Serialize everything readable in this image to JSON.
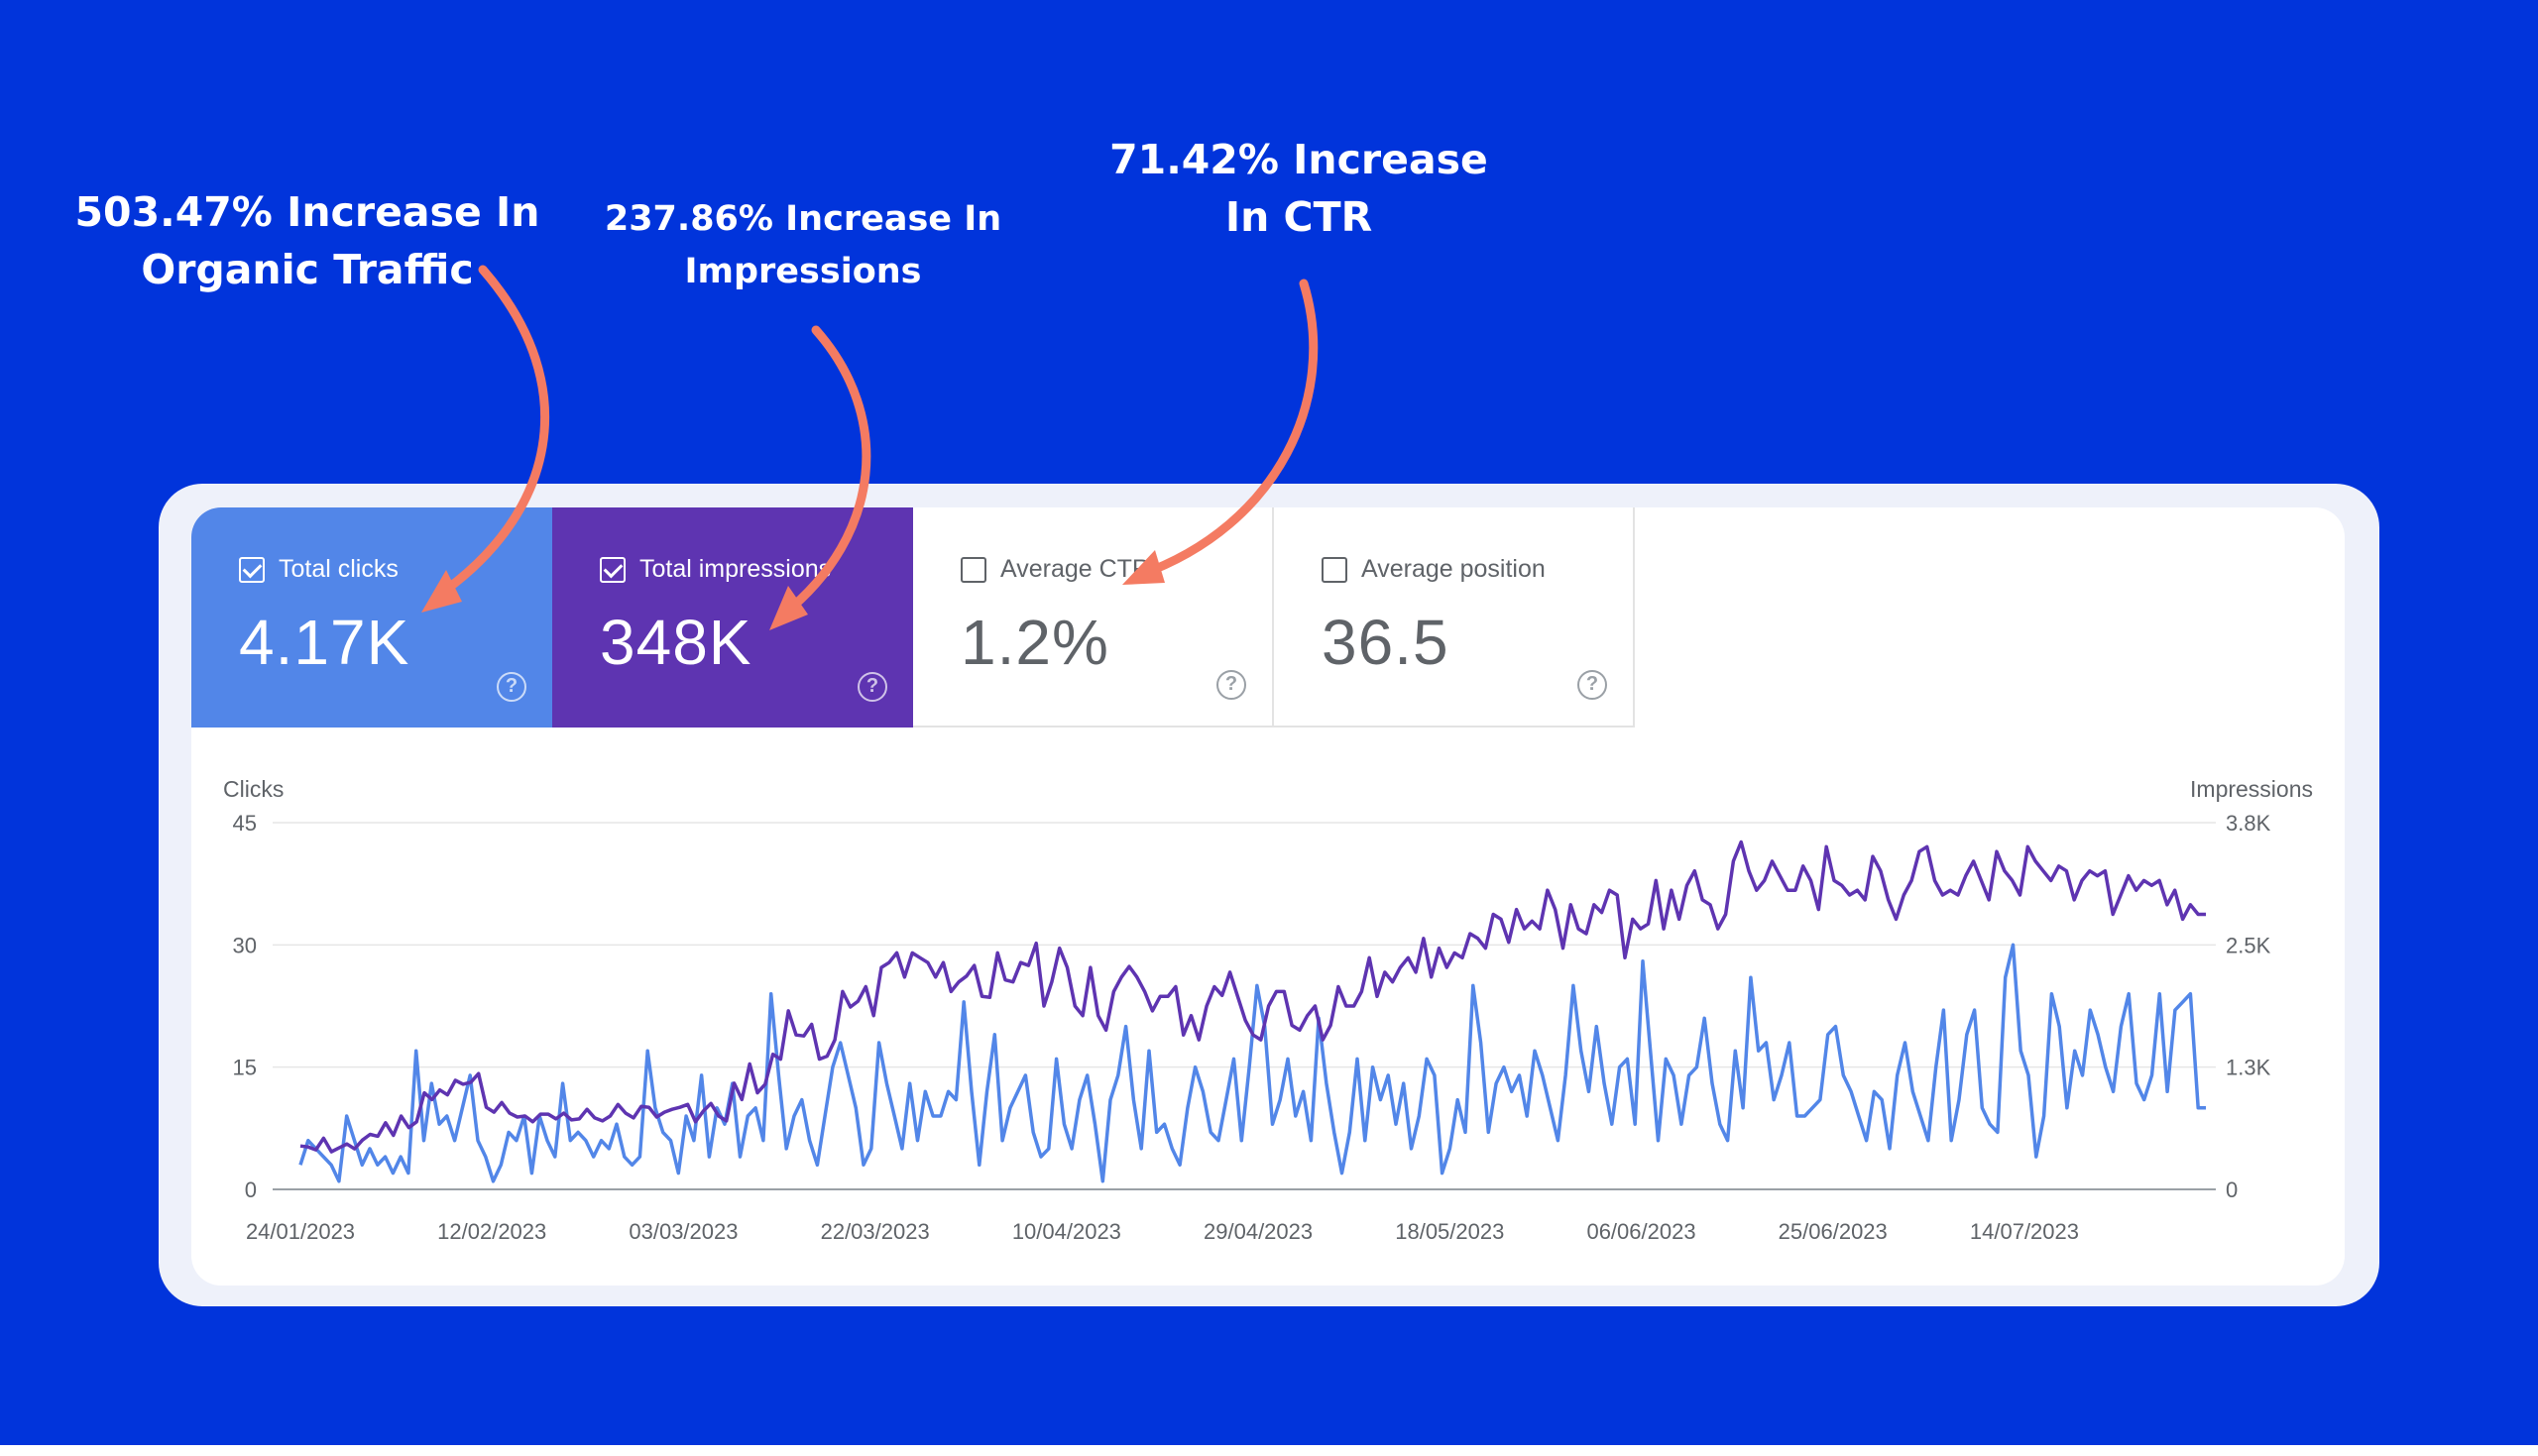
{
  "annotations": {
    "clicks": "503.47% Increase In Organic Traffic",
    "clicks_line1": "503.47% Increase In",
    "clicks_line2": "Organic Traffic",
    "impr_line1": "237.86% Increase In",
    "impr_line2": "Impressions",
    "ctr_line1": "71.42% Increase",
    "ctr_line2": "In CTR"
  },
  "colors": {
    "background": "#0134db",
    "clicks": "#5286e8",
    "impressions": "#5e34b1",
    "arrow": "#f47b62"
  },
  "tiles": [
    {
      "label": "Total clicks",
      "value": "4.17K",
      "checked": true
    },
    {
      "label": "Total impressions",
      "value": "348K",
      "checked": true
    },
    {
      "label": "Average CTR",
      "value": "1.2%",
      "checked": false
    },
    {
      "label": "Average position",
      "value": "36.5",
      "checked": false
    }
  ],
  "help_glyph": "?",
  "chart_data": {
    "type": "line",
    "left_axis": {
      "title": "Clicks",
      "ticks": [
        "0",
        "15",
        "30",
        "45"
      ],
      "range": [
        0,
        45
      ]
    },
    "right_axis": {
      "title": "Impressions",
      "ticks": [
        "0",
        "1.3K",
        "2.5K",
        "3.8K"
      ],
      "range": [
        0,
        3800
      ]
    },
    "x_ticks": [
      "24/01/2023",
      "12/02/2023",
      "03/03/2023",
      "22/03/2023",
      "10/04/2023",
      "29/04/2023",
      "18/05/2023",
      "06/06/2023",
      "25/06/2023",
      "14/07/2023"
    ],
    "x_range_days": [
      0,
      189
    ],
    "grid": true,
    "series": [
      {
        "name": "Clicks",
        "axis": "left",
        "color": "#5286e8",
        "values": [
          3,
          6,
          5,
          4,
          3,
          1,
          9,
          6,
          3,
          5,
          3,
          4,
          2,
          4,
          2,
          17,
          6,
          13,
          8,
          9,
          6,
          10,
          14,
          6,
          4,
          1,
          3,
          7,
          6,
          9,
          2,
          9,
          6,
          4,
          13,
          6,
          7,
          6,
          4,
          6,
          5,
          8,
          4,
          3,
          4,
          17,
          10,
          7,
          6,
          2,
          9,
          6,
          14,
          4,
          10,
          8,
          13,
          4,
          9,
          10,
          6,
          24,
          14,
          5,
          9,
          11,
          6,
          3,
          9,
          15,
          18,
          14,
          10,
          3,
          5,
          18,
          13,
          9,
          5,
          13,
          6,
          12,
          9,
          9,
          12,
          11,
          23,
          12,
          3,
          12,
          19,
          6,
          10,
          12,
          14,
          7,
          4,
          5,
          16,
          8,
          5,
          11,
          14,
          8,
          1,
          11,
          14,
          20,
          11,
          5,
          17,
          7,
          8,
          5,
          3,
          10,
          15,
          12,
          7,
          6,
          11,
          16,
          6,
          15,
          25,
          20,
          8,
          11,
          16,
          9,
          12,
          6,
          21,
          13,
          7,
          2,
          7,
          16,
          6,
          15,
          11,
          14,
          8,
          13,
          5,
          9,
          16,
          14,
          2,
          5,
          11,
          7,
          25,
          18,
          7,
          13,
          15,
          12,
          14,
          9,
          17,
          14,
          10,
          6,
          14,
          25,
          17,
          12,
          20,
          13,
          8,
          15,
          16,
          8,
          28,
          17,
          6,
          16,
          14,
          8,
          14,
          15,
          21,
          13,
          8,
          6,
          17,
          10,
          26,
          17,
          18,
          11,
          14,
          18,
          9,
          9,
          10,
          11,
          19,
          20,
          14,
          12,
          9,
          6,
          12,
          11,
          5,
          14,
          18,
          12,
          9,
          6,
          15,
          22,
          6,
          11,
          19,
          22,
          10,
          8,
          7,
          26,
          30,
          17,
          14,
          4,
          9,
          24,
          20,
          10,
          17,
          14,
          22,
          19,
          15,
          12,
          20,
          24,
          13,
          11,
          14,
          24,
          12,
          22,
          23,
          24,
          10,
          10
        ]
      },
      {
        "name": "Impressions",
        "axis": "right",
        "color": "#5e34b1",
        "values": [
          450,
          440,
          410,
          530,
          390,
          430,
          470,
          420,
          510,
          570,
          550,
          690,
          560,
          760,
          640,
          700,
          1000,
          930,
          1030,
          980,
          1130,
          1090,
          1110,
          1200,
          850,
          800,
          900,
          790,
          750,
          760,
          700,
          780,
          780,
          730,
          790,
          720,
          730,
          830,
          740,
          710,
          760,
          880,
          790,
          740,
          860,
          850,
          750,
          800,
          830,
          850,
          880,
          700,
          810,
          890,
          760,
          710,
          1100,
          930,
          1300,
          1000,
          1090,
          1400,
          1350,
          1850,
          1600,
          1590,
          1710,
          1350,
          1380,
          1550,
          2050,
          1890,
          1950,
          2100,
          1800,
          2300,
          2350,
          2450,
          2200,
          2450,
          2400,
          2350,
          2200,
          2350,
          2050,
          2150,
          2210,
          2320,
          2000,
          1990,
          2450,
          2170,
          2150,
          2350,
          2320,
          2550,
          1900,
          2150,
          2500,
          2300,
          1900,
          1800,
          2300,
          1800,
          1650,
          2050,
          2200,
          2310,
          2200,
          2050,
          1850,
          2000,
          2000,
          2100,
          1600,
          1800,
          1550,
          1900,
          2100,
          2010,
          2250,
          2000,
          1750,
          1600,
          1550,
          1900,
          2050,
          2050,
          1700,
          1650,
          1800,
          1900,
          1550,
          1700,
          2100,
          1900,
          1900,
          2050,
          2400,
          2000,
          2250,
          2150,
          2300,
          2400,
          2250,
          2600,
          2200,
          2500,
          2300,
          2450,
          2400,
          2650,
          2600,
          2500,
          2850,
          2800,
          2560,
          2900,
          2700,
          2780,
          2700,
          3100,
          2900,
          2500,
          2950,
          2700,
          2650,
          2950,
          2870,
          3100,
          3050,
          2400,
          2800,
          2700,
          2750,
          3200,
          2700,
          3100,
          2800,
          3150,
          3300,
          3000,
          2950,
          2700,
          2850,
          3400,
          3600,
          3300,
          3100,
          3200,
          3400,
          3250,
          3100,
          3100,
          3350,
          3200,
          2900,
          3550,
          3200,
          3150,
          3050,
          3100,
          3000,
          3450,
          3300,
          3000,
          2800,
          3050,
          3200,
          3500,
          3550,
          3200,
          3050,
          3100,
          3050,
          3250,
          3400,
          3200,
          3000,
          3500,
          3300,
          3200,
          3050,
          3550,
          3400,
          3300,
          3200,
          3350,
          3300,
          3000,
          3200,
          3300,
          3250,
          3300,
          2850,
          3050,
          3250,
          3100,
          3200,
          3150,
          3200,
          2950,
          3100,
          2800,
          2950,
          2850,
          2850
        ]
      }
    ]
  }
}
